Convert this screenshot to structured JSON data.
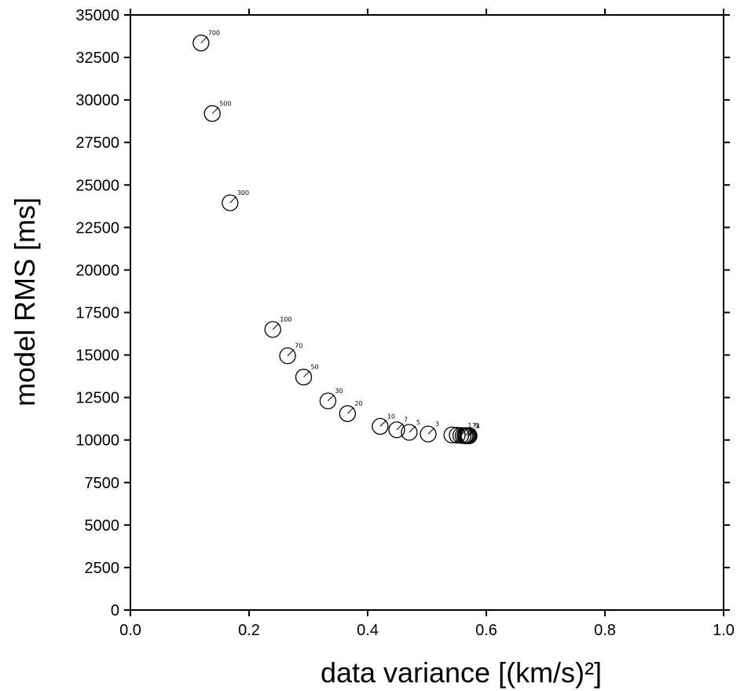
{
  "chart_data": {
    "type": "scatter",
    "title": "",
    "xlabel": "data variance [(km/s)²]",
    "ylabel": "model RMS [ms]",
    "xlim": [
      0,
      1
    ],
    "ylim": [
      0,
      35000
    ],
    "xticks": [
      0.0,
      0.2,
      0.4,
      0.6,
      0.8,
      1.0
    ],
    "xtick_labels": [
      "0.0",
      "0.2",
      "0.4",
      "0.6",
      "0.8",
      "1.0"
    ],
    "yticks": [
      0,
      2500,
      5000,
      7500,
      10000,
      12500,
      15000,
      17500,
      20000,
      22500,
      25000,
      27500,
      30000,
      32500,
      35000
    ],
    "ytick_labels": [
      "0",
      "2500",
      "5000",
      "7500",
      "10000",
      "12500",
      "15000",
      "17500",
      "20000",
      "22500",
      "25000",
      "27500",
      "30000",
      "32500",
      "35000"
    ],
    "grid": false,
    "marker": "open-circle",
    "points": [
      {
        "x": 0.119,
        "y": 33350,
        "label": "700"
      },
      {
        "x": 0.138,
        "y": 29200,
        "label": "500"
      },
      {
        "x": 0.168,
        "y": 23950,
        "label": "300"
      },
      {
        "x": 0.24,
        "y": 16500,
        "label": "100"
      },
      {
        "x": 0.265,
        "y": 14950,
        "label": "70"
      },
      {
        "x": 0.292,
        "y": 13700,
        "label": "50"
      },
      {
        "x": 0.333,
        "y": 12300,
        "label": "30"
      },
      {
        "x": 0.366,
        "y": 11550,
        "label": "20"
      },
      {
        "x": 0.421,
        "y": 10800,
        "label": "10"
      },
      {
        "x": 0.449,
        "y": 10600,
        "label": "7"
      },
      {
        "x": 0.47,
        "y": 10450,
        "label": "5"
      },
      {
        "x": 0.502,
        "y": 10350,
        "label": "3"
      },
      {
        "x": 0.542,
        "y": 10300,
        "label": ""
      },
      {
        "x": 0.551,
        "y": 10280,
        "label": ""
      },
      {
        "x": 0.557,
        "y": 10270,
        "label": "1"
      },
      {
        "x": 0.561,
        "y": 10260,
        "label": ""
      },
      {
        "x": 0.564,
        "y": 10255,
        "label": "7"
      },
      {
        "x": 0.566,
        "y": 10250,
        "label": ""
      },
      {
        "x": 0.568,
        "y": 10250,
        "label": "5"
      },
      {
        "x": 0.569,
        "y": 10250,
        "label": ""
      },
      {
        "x": 0.57,
        "y": 10250,
        "label": "3"
      },
      {
        "x": 0.571,
        "y": 10250,
        "label": "1"
      }
    ]
  }
}
